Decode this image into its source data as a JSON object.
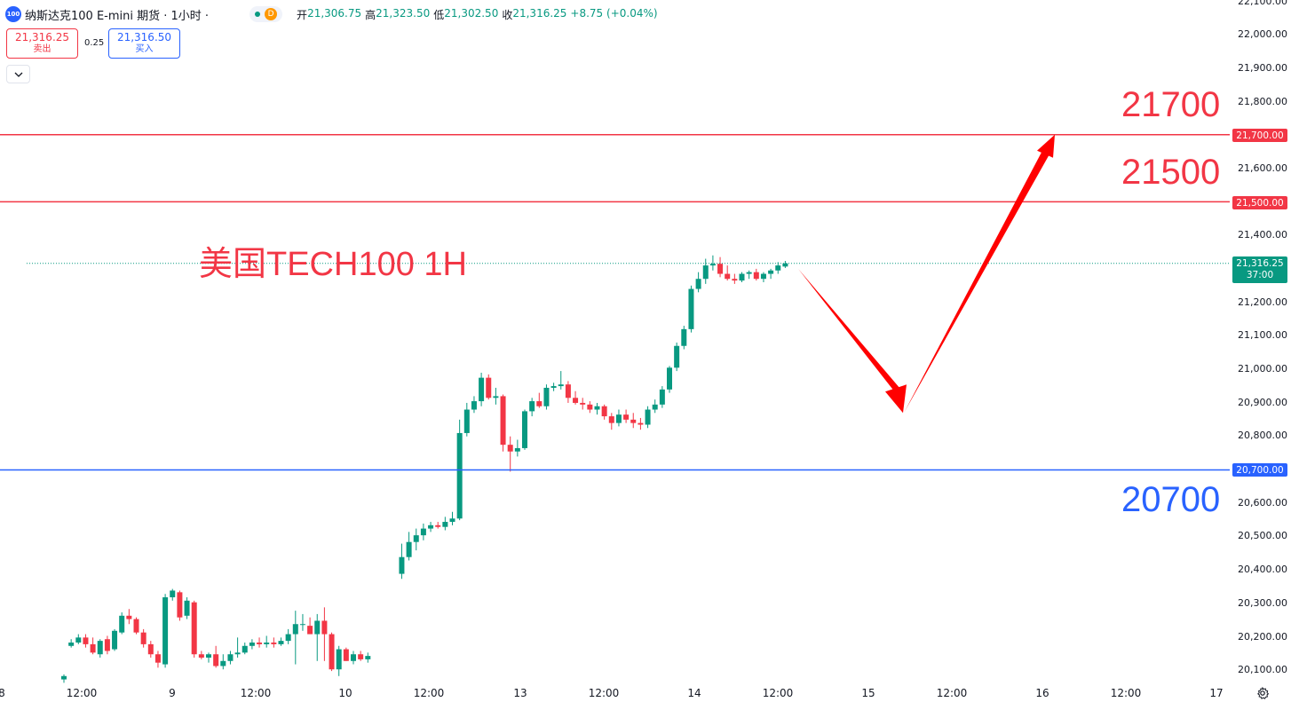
{
  "header": {
    "symbol_icon": "100",
    "title": "纳斯达克100 E-mini 期货 · 1小时 ·",
    "status_badge": "D",
    "open_label": "开",
    "open": "21,306.75",
    "high_label": "高",
    "high": "21,323.50",
    "low_label": "低",
    "low": "21,302.50",
    "close_label": "收",
    "close": "21,316.25",
    "change": "+8.75 (+0.04%)"
  },
  "trade": {
    "sell_price": "21,316.25",
    "sell_label": "卖出",
    "spread": "0.25",
    "buy_price": "21,316.50",
    "buy_label": "买入"
  },
  "annotations": {
    "title": "美国TECH100 1H",
    "level_21700": "21700",
    "level_21500": "21500",
    "level_20700": "20700"
  },
  "price_axis": {
    "labels": [
      "22,100.00",
      "22,000.00",
      "21,900.00",
      "21,800.00",
      "21,600.00",
      "21,400.00",
      "21,200.00",
      "21,100.00",
      "21,000.00",
      "20,900.00",
      "20,800.00",
      "20,600.00",
      "20,500.00",
      "20,400.00",
      "20,300.00",
      "20,200.00",
      "20,100.00"
    ],
    "tag_21700": "21,700.00",
    "tag_21500": "21,500.00",
    "tag_20700": "20,700.00",
    "current_price": "21,316.25",
    "countdown": "37:00"
  },
  "time_axis": {
    "labels": [
      "8",
      "12:00",
      "9",
      "12:00",
      "10",
      "12:00",
      "13",
      "12:00",
      "14",
      "12:00",
      "15",
      "12:00",
      "16",
      "12:00",
      "17"
    ]
  },
  "colors": {
    "up": "#089981",
    "down": "#f23645",
    "red_line": "#f23645",
    "blue_line": "#2962ff",
    "arrow": "#ff0000"
  },
  "icons": {
    "settings": "gear-icon",
    "collapse": "chevron-down-icon"
  },
  "chart_data": {
    "type": "candlestick",
    "interval": "1H",
    "horizontal_levels": [
      21700,
      21500,
      20700
    ],
    "current_price": 21316.25,
    "candles": [
      {
        "o": 20075,
        "h": 20090,
        "l": 20065,
        "c": 20085
      },
      {
        "o": 20175,
        "h": 20195,
        "l": 20170,
        "c": 20185
      },
      {
        "o": 20185,
        "h": 20210,
        "l": 20180,
        "c": 20200
      },
      {
        "o": 20200,
        "h": 20210,
        "l": 20170,
        "c": 20180
      },
      {
        "o": 20180,
        "h": 20200,
        "l": 20150,
        "c": 20155
      },
      {
        "o": 20150,
        "h": 20195,
        "l": 20140,
        "c": 20190
      },
      {
        "o": 20195,
        "h": 20205,
        "l": 20150,
        "c": 20160
      },
      {
        "o": 20165,
        "h": 20225,
        "l": 20160,
        "c": 20220
      },
      {
        "o": 20215,
        "h": 20275,
        "l": 20210,
        "c": 20265
      },
      {
        "o": 20265,
        "h": 20285,
        "l": 20240,
        "c": 20255
      },
      {
        "o": 20255,
        "h": 20260,
        "l": 20210,
        "c": 20215
      },
      {
        "o": 20215,
        "h": 20225,
        "l": 20170,
        "c": 20180
      },
      {
        "o": 20180,
        "h": 20190,
        "l": 20140,
        "c": 20150
      },
      {
        "o": 20150,
        "h": 20160,
        "l": 20110,
        "c": 20125
      },
      {
        "o": 20120,
        "h": 20330,
        "l": 20110,
        "c": 20320
      },
      {
        "o": 20320,
        "h": 20345,
        "l": 20310,
        "c": 20340
      },
      {
        "o": 20335,
        "h": 20340,
        "l": 20250,
        "c": 20260
      },
      {
        "o": 20265,
        "h": 20320,
        "l": 20255,
        "c": 20310
      },
      {
        "o": 20305,
        "h": 20310,
        "l": 20140,
        "c": 20150
      },
      {
        "o": 20150,
        "h": 20160,
        "l": 20135,
        "c": 20140
      },
      {
        "o": 20140,
        "h": 20155,
        "l": 20125,
        "c": 20150
      },
      {
        "o": 20150,
        "h": 20175,
        "l": 20110,
        "c": 20115
      },
      {
        "o": 20115,
        "h": 20150,
        "l": 20105,
        "c": 20130
      },
      {
        "o": 20130,
        "h": 20160,
        "l": 20120,
        "c": 20150
      },
      {
        "o": 20150,
        "h": 20200,
        "l": 20140,
        "c": 20155
      },
      {
        "o": 20155,
        "h": 20185,
        "l": 20150,
        "c": 20175
      },
      {
        "o": 20175,
        "h": 20195,
        "l": 20165,
        "c": 20185
      },
      {
        "o": 20185,
        "h": 20200,
        "l": 20170,
        "c": 20180
      },
      {
        "o": 20180,
        "h": 20205,
        "l": 20170,
        "c": 20185
      },
      {
        "o": 20185,
        "h": 20200,
        "l": 20170,
        "c": 20180
      },
      {
        "o": 20180,
        "h": 20200,
        "l": 20175,
        "c": 20190
      },
      {
        "o": 20190,
        "h": 20225,
        "l": 20180,
        "c": 20210
      },
      {
        "o": 20210,
        "h": 20280,
        "l": 20120,
        "c": 20240
      },
      {
        "o": 20240,
        "h": 20270,
        "l": 20220,
        "c": 20240
      },
      {
        "o": 20235,
        "h": 20260,
        "l": 20210,
        "c": 20210
      },
      {
        "o": 20210,
        "h": 20270,
        "l": 20130,
        "c": 20250
      },
      {
        "o": 20250,
        "h": 20290,
        "l": 20130,
        "c": 20210
      },
      {
        "o": 20210,
        "h": 20215,
        "l": 20100,
        "c": 20105
      },
      {
        "o": 20105,
        "h": 20175,
        "l": 20085,
        "c": 20165
      },
      {
        "o": 20165,
        "h": 20170,
        "l": 20130,
        "c": 20130
      },
      {
        "o": 20130,
        "h": 20160,
        "l": 20120,
        "c": 20150
      },
      {
        "o": 20150,
        "h": 20160,
        "l": 20130,
        "c": 20135
      },
      {
        "o": 20135,
        "h": 20155,
        "l": 20125,
        "c": 20145
      },
      {
        "o": 20390,
        "h": 20480,
        "l": 20375,
        "c": 20440
      },
      {
        "o": 20440,
        "h": 20515,
        "l": 20430,
        "c": 20485
      },
      {
        "o": 20485,
        "h": 20525,
        "l": 20460,
        "c": 20505
      },
      {
        "o": 20505,
        "h": 20540,
        "l": 20490,
        "c": 20525
      },
      {
        "o": 20525,
        "h": 20545,
        "l": 20515,
        "c": 20535
      },
      {
        "o": 20535,
        "h": 20545,
        "l": 20525,
        "c": 20530
      },
      {
        "o": 20530,
        "h": 20560,
        "l": 20520,
        "c": 20545
      },
      {
        "o": 20545,
        "h": 20575,
        "l": 20535,
        "c": 20555
      },
      {
        "o": 20555,
        "h": 20850,
        "l": 20550,
        "c": 20810
      },
      {
        "o": 20810,
        "h": 20900,
        "l": 20800,
        "c": 20880
      },
      {
        "o": 20880,
        "h": 20920,
        "l": 20870,
        "c": 20905
      },
      {
        "o": 20905,
        "h": 20990,
        "l": 20890,
        "c": 20975
      },
      {
        "o": 20975,
        "h": 20985,
        "l": 20910,
        "c": 20915
      },
      {
        "o": 20915,
        "h": 20945,
        "l": 20895,
        "c": 20920
      },
      {
        "o": 20920,
        "h": 20925,
        "l": 20755,
        "c": 20775
      },
      {
        "o": 20775,
        "h": 20800,
        "l": 20695,
        "c": 20755
      },
      {
        "o": 20755,
        "h": 20790,
        "l": 20740,
        "c": 20765
      },
      {
        "o": 20765,
        "h": 20880,
        "l": 20760,
        "c": 20875
      },
      {
        "o": 20875,
        "h": 20915,
        "l": 20860,
        "c": 20905
      },
      {
        "o": 20905,
        "h": 20930,
        "l": 20885,
        "c": 20890
      },
      {
        "o": 20890,
        "h": 20955,
        "l": 20880,
        "c": 20945
      },
      {
        "o": 20945,
        "h": 20960,
        "l": 20935,
        "c": 20950
      },
      {
        "o": 20950,
        "h": 20995,
        "l": 20940,
        "c": 20955
      },
      {
        "o": 20955,
        "h": 20965,
        "l": 20900,
        "c": 20915
      },
      {
        "o": 20915,
        "h": 20935,
        "l": 20895,
        "c": 20900
      },
      {
        "o": 20900,
        "h": 20915,
        "l": 20880,
        "c": 20895
      },
      {
        "o": 20895,
        "h": 20905,
        "l": 20870,
        "c": 20880
      },
      {
        "o": 20880,
        "h": 20900,
        "l": 20865,
        "c": 20890
      },
      {
        "o": 20890,
        "h": 20895,
        "l": 20850,
        "c": 20860
      },
      {
        "o": 20860,
        "h": 20870,
        "l": 20820,
        "c": 20840
      },
      {
        "o": 20840,
        "h": 20880,
        "l": 20830,
        "c": 20865
      },
      {
        "o": 20865,
        "h": 20880,
        "l": 20840,
        "c": 20850
      },
      {
        "o": 20850,
        "h": 20870,
        "l": 20825,
        "c": 20840
      },
      {
        "o": 20840,
        "h": 20855,
        "l": 20820,
        "c": 20835
      },
      {
        "o": 20835,
        "h": 20890,
        "l": 20825,
        "c": 20880
      },
      {
        "o": 20880,
        "h": 20910,
        "l": 20870,
        "c": 20895
      },
      {
        "o": 20895,
        "h": 20950,
        "l": 20885,
        "c": 20940
      },
      {
        "o": 20940,
        "h": 21010,
        "l": 20930,
        "c": 21005
      },
      {
        "o": 21005,
        "h": 21080,
        "l": 20995,
        "c": 21070
      },
      {
        "o": 21070,
        "h": 21130,
        "l": 21060,
        "c": 21120
      },
      {
        "o": 21120,
        "h": 21250,
        "l": 21110,
        "c": 21240
      },
      {
        "o": 21240,
        "h": 21290,
        "l": 21230,
        "c": 21270
      },
      {
        "o": 21270,
        "h": 21330,
        "l": 21255,
        "c": 21310
      },
      {
        "o": 21310,
        "h": 21340,
        "l": 21295,
        "c": 21315
      },
      {
        "o": 21315,
        "h": 21335,
        "l": 21275,
        "c": 21285
      },
      {
        "o": 21285,
        "h": 21310,
        "l": 21265,
        "c": 21270
      },
      {
        "o": 21270,
        "h": 21285,
        "l": 21255,
        "c": 21265
      },
      {
        "o": 21265,
        "h": 21290,
        "l": 21260,
        "c": 21285
      },
      {
        "o": 21285,
        "h": 21295,
        "l": 21270,
        "c": 21290
      },
      {
        "o": 21290,
        "h": 21300,
        "l": 21265,
        "c": 21270
      },
      {
        "o": 21270,
        "h": 21290,
        "l": 21260,
        "c": 21285
      },
      {
        "o": 21285,
        "h": 21300,
        "l": 21270,
        "c": 21295
      },
      {
        "o": 21295,
        "h": 21320,
        "l": 21285,
        "c": 21310
      },
      {
        "o": 21306.75,
        "h": 21323.5,
        "l": 21302.5,
        "c": 21316.25
      }
    ],
    "projection_path": [
      [
        21300,
        "now"
      ],
      [
        20870,
        "down"
      ],
      [
        21700,
        "up"
      ]
    ]
  }
}
